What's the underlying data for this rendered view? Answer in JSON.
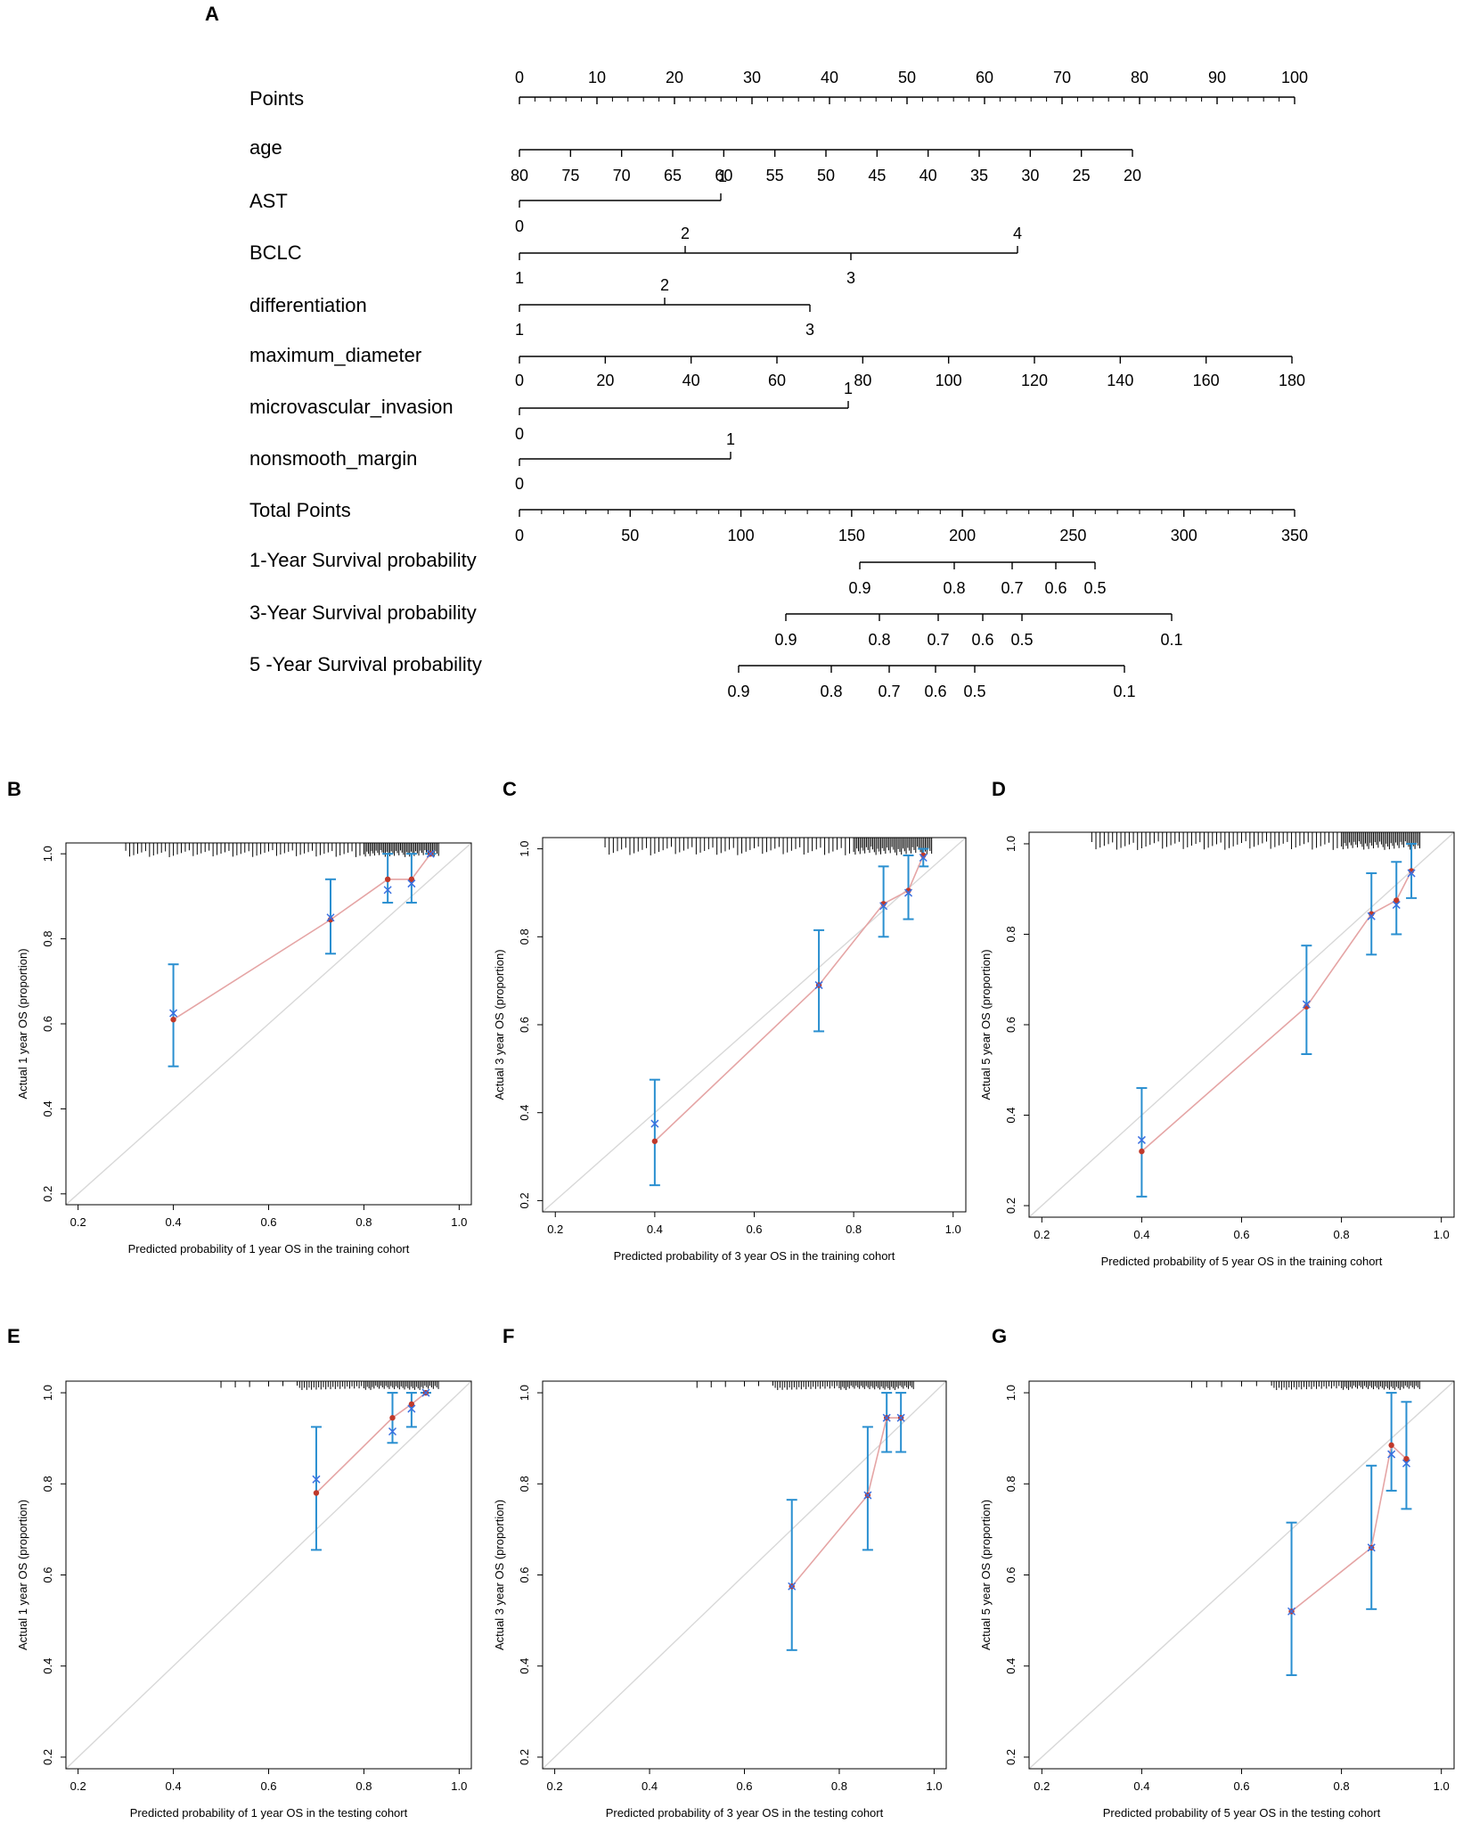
{
  "panel_labels": [
    "A",
    "B",
    "C",
    "D",
    "E",
    "F",
    "G"
  ],
  "chart_data": [
    {
      "type": "nomogram",
      "panel": "A",
      "rows": [
        {
          "label": "Points",
          "ticks": [
            "0",
            "10",
            "20",
            "30",
            "40",
            "50",
            "60",
            "70",
            "80",
            "90",
            "100"
          ]
        },
        {
          "label": "age",
          "ticks": [
            "80",
            "75",
            "70",
            "65",
            "60",
            "55",
            "50",
            "45",
            "40",
            "35",
            "30",
            "25",
            "20"
          ]
        },
        {
          "label": "AST",
          "ticks": [
            "0",
            "1"
          ]
        },
        {
          "label": "BCLC",
          "ticks": [
            "1",
            "2",
            "3",
            "4"
          ]
        },
        {
          "label": "differentiation",
          "ticks": [
            "1",
            "2",
            "3"
          ]
        },
        {
          "label": "maximum_diameter",
          "ticks": [
            "0",
            "20",
            "40",
            "60",
            "80",
            "100",
            "120",
            "140",
            "160",
            "180"
          ]
        },
        {
          "label": "microvascular_invasion",
          "ticks": [
            "0",
            "1"
          ]
        },
        {
          "label": "nonsmooth_margin",
          "ticks": [
            "0",
            "1"
          ]
        },
        {
          "label": "Total Points",
          "ticks": [
            "0",
            "50",
            "100",
            "150",
            "200",
            "250",
            "300",
            "350"
          ]
        },
        {
          "label": "1-Year Survival probability",
          "ticks": [
            "0.9",
            "0.8",
            "0.7",
            "0.6",
            "0.5"
          ]
        },
        {
          "label": "3-Year Survival probability",
          "ticks": [
            "0.9",
            "0.8",
            "0.7",
            "0.6",
            "0.5",
            "0.1"
          ]
        },
        {
          "label": "5 -Year Survival probability",
          "ticks": [
            "0.9",
            "0.8",
            "0.7",
            "0.6",
            "0.5",
            "0.1"
          ]
        }
      ]
    },
    {
      "type": "scatter",
      "panel": "B",
      "xlabel": "Predicted probability of 1 year OS in the training cohort",
      "ylabel": "Actual 1 year OS (proportion)",
      "xlim": [
        0.2,
        1.0
      ],
      "ylim": [
        0.2,
        1.0
      ],
      "xticks": [
        "0.2",
        "0.4",
        "0.6",
        "0.8",
        "1.0"
      ],
      "yticks": [
        "0.2",
        "0.4",
        "0.6",
        "0.8",
        "1.0"
      ],
      "series": [
        {
          "name": "observed",
          "x": [
            0.4,
            0.73,
            0.85,
            0.9,
            0.94
          ],
          "y": [
            0.61,
            0.845,
            0.94,
            0.94,
            1.0
          ]
        },
        {
          "name": "bias-corrected",
          "x": [
            0.4,
            0.73,
            0.85,
            0.9,
            0.94
          ],
          "y": [
            0.625,
            0.85,
            0.915,
            0.93,
            1.0
          ]
        }
      ],
      "error_bars": {
        "x": [
          0.4,
          0.73,
          0.85,
          0.9,
          0.94
        ],
        "low": [
          0.5,
          0.765,
          0.885,
          0.885,
          1.0
        ],
        "high": [
          0.74,
          0.94,
          1.0,
          1.0,
          1.0
        ]
      }
    },
    {
      "type": "scatter",
      "panel": "C",
      "xlabel": "Predicted probability of 3 year OS in the training cohort",
      "ylabel": "Actual 3 year OS (proportion)",
      "xlim": [
        0.2,
        1.0
      ],
      "ylim": [
        0.2,
        1.0
      ],
      "xticks": [
        "0.2",
        "0.4",
        "0.6",
        "0.8",
        "1.0"
      ],
      "yticks": [
        "0.2",
        "0.4",
        "0.6",
        "0.8",
        "1.0"
      ],
      "series": [
        {
          "name": "observed",
          "x": [
            0.4,
            0.73,
            0.86,
            0.91,
            0.94
          ],
          "y": [
            0.335,
            0.69,
            0.875,
            0.905,
            0.985
          ]
        },
        {
          "name": "bias-corrected",
          "x": [
            0.4,
            0.73,
            0.86,
            0.91,
            0.94
          ],
          "y": [
            0.375,
            0.69,
            0.87,
            0.9,
            0.98
          ]
        }
      ],
      "error_bars": {
        "x": [
          0.4,
          0.73,
          0.86,
          0.91,
          0.94
        ],
        "low": [
          0.235,
          0.585,
          0.8,
          0.84,
          0.96
        ],
        "high": [
          0.475,
          0.815,
          0.96,
          0.985,
          1.0
        ]
      }
    },
    {
      "type": "scatter",
      "panel": "D",
      "xlabel": "Predicted probability of 5 year OS in the training cohort",
      "ylabel": "Actual 5 year OS (proportion)",
      "xlim": [
        0.2,
        1.0
      ],
      "ylim": [
        0.2,
        1.0
      ],
      "xticks": [
        "0.2",
        "0.4",
        "0.6",
        "0.8",
        "1.0"
      ],
      "yticks": [
        "0.2",
        "0.4",
        "0.6",
        "0.8",
        "1.0"
      ],
      "series": [
        {
          "name": "observed",
          "x": [
            0.4,
            0.73,
            0.86,
            0.91,
            0.94
          ],
          "y": [
            0.32,
            0.64,
            0.845,
            0.875,
            0.94
          ]
        },
        {
          "name": "bias-corrected",
          "x": [
            0.4,
            0.73,
            0.86,
            0.91,
            0.94
          ],
          "y": [
            0.345,
            0.645,
            0.84,
            0.865,
            0.935
          ]
        }
      ],
      "error_bars": {
        "x": [
          0.4,
          0.73,
          0.86,
          0.91,
          0.94
        ],
        "low": [
          0.22,
          0.535,
          0.755,
          0.8,
          0.88
        ],
        "high": [
          0.46,
          0.775,
          0.935,
          0.96,
          1.0
        ]
      }
    },
    {
      "type": "scatter",
      "panel": "E",
      "xlabel": "Predicted probability of 1 year OS in the testing cohort",
      "ylabel": "Actual 1 year OS (proportion)",
      "xlim": [
        0.2,
        1.0
      ],
      "ylim": [
        0.2,
        1.0
      ],
      "xticks": [
        "0.2",
        "0.4",
        "0.6",
        "0.8",
        "1.0"
      ],
      "yticks": [
        "0.2",
        "0.4",
        "0.6",
        "0.8",
        "1.0"
      ],
      "series": [
        {
          "name": "observed",
          "x": [
            0.7,
            0.86,
            0.9,
            0.93
          ],
          "y": [
            0.78,
            0.945,
            0.975,
            1.0
          ]
        },
        {
          "name": "bias-corrected",
          "x": [
            0.7,
            0.86,
            0.9,
            0.93
          ],
          "y": [
            0.81,
            0.915,
            0.965,
            1.0
          ]
        }
      ],
      "error_bars": {
        "x": [
          0.7,
          0.86,
          0.9,
          0.93
        ],
        "low": [
          0.655,
          0.89,
          0.925,
          1.0
        ],
        "high": [
          0.925,
          1.0,
          1.0,
          1.0
        ]
      }
    },
    {
      "type": "scatter",
      "panel": "F",
      "xlabel": "Predicted probability of 3 year OS in the testing cohort",
      "ylabel": "Actual 3 year OS (proportion)",
      "xlim": [
        0.2,
        1.0
      ],
      "ylim": [
        0.2,
        1.0
      ],
      "xticks": [
        "0.2",
        "0.4",
        "0.6",
        "0.8",
        "1.0"
      ],
      "yticks": [
        "0.2",
        "0.4",
        "0.6",
        "0.8",
        "1.0"
      ],
      "series": [
        {
          "name": "observed",
          "x": [
            0.7,
            0.86,
            0.9,
            0.93
          ],
          "y": [
            0.575,
            0.775,
            0.945,
            0.945
          ]
        },
        {
          "name": "bias-corrected",
          "x": [
            0.7,
            0.86,
            0.9,
            0.93
          ],
          "y": [
            0.575,
            0.775,
            0.945,
            0.945
          ]
        }
      ],
      "error_bars": {
        "x": [
          0.7,
          0.86,
          0.9,
          0.93
        ],
        "low": [
          0.435,
          0.655,
          0.87,
          0.87
        ],
        "high": [
          0.765,
          0.925,
          1.0,
          1.0
        ]
      }
    },
    {
      "type": "scatter",
      "panel": "G",
      "xlabel": "Predicted probability of 5 year OS in the testing cohort",
      "ylabel": "Actual 5 year OS (proportion)",
      "xlim": [
        0.2,
        1.0
      ],
      "ylim": [
        0.2,
        1.0
      ],
      "xticks": [
        "0.2",
        "0.4",
        "0.6",
        "0.8",
        "1.0"
      ],
      "yticks": [
        "0.2",
        "0.4",
        "0.6",
        "0.8",
        "1.0"
      ],
      "series": [
        {
          "name": "observed",
          "x": [
            0.7,
            0.86,
            0.9,
            0.93
          ],
          "y": [
            0.52,
            0.66,
            0.885,
            0.855
          ]
        },
        {
          "name": "bias-corrected",
          "x": [
            0.7,
            0.86,
            0.9,
            0.93
          ],
          "y": [
            0.52,
            0.66,
            0.865,
            0.845
          ]
        }
      ],
      "error_bars": {
        "x": [
          0.7,
          0.86,
          0.9,
          0.93
        ],
        "low": [
          0.38,
          0.525,
          0.785,
          0.745
        ],
        "high": [
          0.715,
          0.84,
          1.0,
          0.98
        ]
      }
    }
  ],
  "colors": {
    "ink": "#000000",
    "observed": "#c0392b",
    "corrected": "#3a6fe0",
    "errorbar": "#2a8fd0",
    "curve": "#e5a5a5",
    "ideal": "#d8d8d8"
  }
}
